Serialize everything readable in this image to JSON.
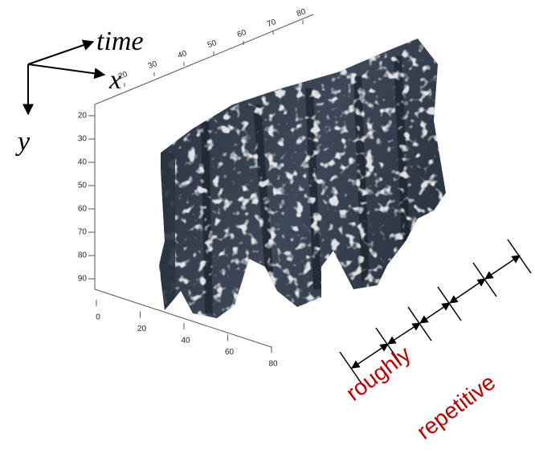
{
  "axis_labels": {
    "time": "time",
    "x": "x",
    "y": "y"
  },
  "top_axis": {
    "ticks": [
      20,
      30,
      40,
      50,
      60,
      70,
      80
    ]
  },
  "left_axis": {
    "ticks": [
      20,
      30,
      40,
      50,
      60,
      70,
      80,
      90
    ]
  },
  "bottom_axis": {
    "ticks": [
      0,
      20,
      40,
      60,
      80
    ]
  },
  "annotation": {
    "line1": "roughly",
    "line2": "repetitive"
  }
}
